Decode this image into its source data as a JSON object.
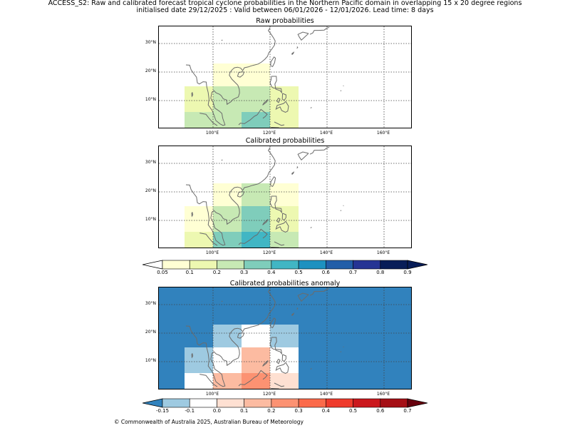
{
  "header": {
    "line1": "ACCESS_S2: Raw and calibrated forecast tropical cyclone probabilities in the Northern Pacific domain in overlapping 15 x 20 degree regions",
    "line2": "initialised date 29/12/2025 :  Valid between 06/01/2026 - 12/01/2026. Lead time: 8 days"
  },
  "map_axes": {
    "lon_labels": [
      "100°E",
      "120°E",
      "140°E",
      "160°E"
    ],
    "lat_labels": [
      "30°N",
      "20°N",
      "10°N"
    ]
  },
  "panels": [
    {
      "title": "Raw probabilities",
      "cells": [
        {
          "lon": [
            100,
            110
          ],
          "lat": [
            15,
            23
          ],
          "color": "#ffffd4"
        },
        {
          "lon": [
            110,
            120
          ],
          "lat": [
            15,
            23
          ],
          "color": "#ffffd4"
        },
        {
          "lon": [
            90,
            100
          ],
          "lat": [
            6,
            15
          ],
          "color": "#edf8b1"
        },
        {
          "lon": [
            100,
            110
          ],
          "lat": [
            6,
            15
          ],
          "color": "#c7e9b4"
        },
        {
          "lon": [
            110,
            120
          ],
          "lat": [
            6,
            15
          ],
          "color": "#c7e9b4"
        },
        {
          "lon": [
            120,
            130
          ],
          "lat": [
            6,
            15
          ],
          "color": "#edf8b1"
        },
        {
          "lon": [
            90,
            100
          ],
          "lat": [
            0,
            6
          ],
          "color": "#c7e9b4"
        },
        {
          "lon": [
            100,
            110
          ],
          "lat": [
            0,
            6
          ],
          "color": "#c7e9b4"
        },
        {
          "lon": [
            110,
            120
          ],
          "lat": [
            0,
            6
          ],
          "color": "#7fcdbb"
        },
        {
          "lon": [
            120,
            130
          ],
          "lat": [
            0,
            6
          ],
          "color": "#edf8b1"
        }
      ]
    },
    {
      "title": "Calibrated probabilities",
      "cells": [
        {
          "lon": [
            100,
            110
          ],
          "lat": [
            15,
            23
          ],
          "color": "#ffffd4"
        },
        {
          "lon": [
            110,
            120
          ],
          "lat": [
            15,
            23
          ],
          "color": "#c7e9b4"
        },
        {
          "lon": [
            120,
            130
          ],
          "lat": [
            15,
            23
          ],
          "color": "#ffffd4"
        },
        {
          "lon": [
            90,
            100
          ],
          "lat": [
            6,
            15
          ],
          "color": "#ffffd4"
        },
        {
          "lon": [
            100,
            110
          ],
          "lat": [
            6,
            15
          ],
          "color": "#c7e9b4"
        },
        {
          "lon": [
            110,
            120
          ],
          "lat": [
            6,
            15
          ],
          "color": "#7fcdbb"
        },
        {
          "lon": [
            120,
            130
          ],
          "lat": [
            6,
            15
          ],
          "color": "#edf8b1"
        },
        {
          "lon": [
            90,
            100
          ],
          "lat": [
            0,
            6
          ],
          "color": "#edf8b1"
        },
        {
          "lon": [
            100,
            110
          ],
          "lat": [
            0,
            6
          ],
          "color": "#7fcdbb"
        },
        {
          "lon": [
            110,
            120
          ],
          "lat": [
            0,
            6
          ],
          "color": "#41b6c4"
        },
        {
          "lon": [
            120,
            130
          ],
          "lat": [
            0,
            6
          ],
          "color": "#c7e9b4"
        }
      ]
    },
    {
      "title": "Calibrated probabilities anomaly",
      "background": "#3182bd",
      "cells": [
        {
          "lon": [
            100,
            110
          ],
          "lat": [
            15,
            23
          ],
          "color": "#9ecae1"
        },
        {
          "lon": [
            110,
            120
          ],
          "lat": [
            15,
            23
          ],
          "color": "#ffffff"
        },
        {
          "lon": [
            120,
            130
          ],
          "lat": [
            15,
            23
          ],
          "color": "#9ecae1"
        },
        {
          "lon": [
            90,
            100
          ],
          "lat": [
            6,
            15
          ],
          "color": "#9ecae1"
        },
        {
          "lon": [
            100,
            110
          ],
          "lat": [
            6,
            15
          ],
          "color": "#ffffff"
        },
        {
          "lon": [
            110,
            120
          ],
          "lat": [
            6,
            15
          ],
          "color": "#fcbba1"
        },
        {
          "lon": [
            120,
            130
          ],
          "lat": [
            6,
            15
          ],
          "color": "#ffffff"
        },
        {
          "lon": [
            90,
            100
          ],
          "lat": [
            0,
            6
          ],
          "color": "#ffffff"
        },
        {
          "lon": [
            100,
            110
          ],
          "lat": [
            0,
            6
          ],
          "color": "#fcbba1"
        },
        {
          "lon": [
            110,
            120
          ],
          "lat": [
            0,
            6
          ],
          "color": "#fc9272"
        },
        {
          "lon": [
            120,
            130
          ],
          "lat": [
            0,
            6
          ],
          "color": "#fee0d2"
        }
      ]
    }
  ],
  "colorbar_prob": {
    "ticks": [
      "0.05",
      "0.1",
      "0.2",
      "0.3",
      "0.4",
      "0.5",
      "0.6",
      "0.7",
      "0.8",
      "0.9"
    ],
    "under_color": "#ffffff",
    "colors": [
      "#ffffd4",
      "#edf8b1",
      "#c7e9b4",
      "#7fcdbb",
      "#41b6c4",
      "#1d91c0",
      "#225ea8",
      "#253494",
      "#081d58"
    ],
    "over_color": "#081d58"
  },
  "colorbar_anom": {
    "ticks": [
      "-0.15",
      "-0.1",
      "0.0",
      "0.1",
      "0.2",
      "0.3",
      "0.4",
      "0.5",
      "0.6",
      "0.7"
    ],
    "under_color": "#3182bd",
    "colors": [
      "#9ecae1",
      "#ffffff",
      "#fee0d2",
      "#fcbba1",
      "#fc9272",
      "#fb6a4a",
      "#ef3b2c",
      "#cb181d",
      "#a50f15"
    ],
    "over_color": "#67000d"
  },
  "footer": {
    "copyright": "© Commonwealth of Australia 2025, Australian Bureau of Meteorology"
  }
}
